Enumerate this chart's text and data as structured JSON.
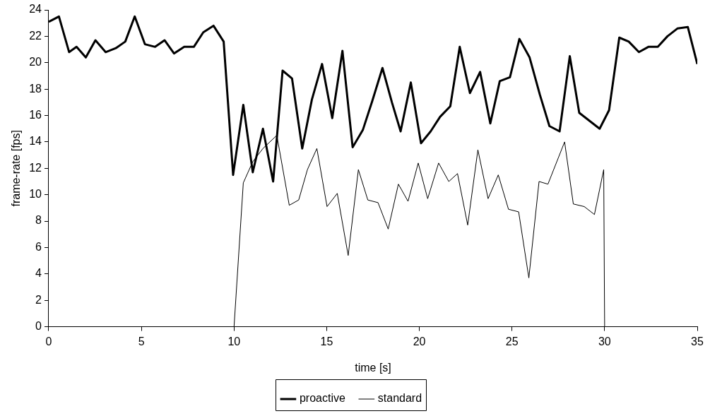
{
  "chart_data": {
    "type": "line",
    "xlabel": "time [s]",
    "ylabel": "frame-rate [fps]",
    "xlim": [
      0,
      35
    ],
    "xticks": [
      0,
      5,
      10,
      15,
      20,
      25,
      30,
      35
    ],
    "ylim": [
      0,
      24
    ],
    "yticks": [
      0,
      2,
      4,
      6,
      8,
      10,
      12,
      14,
      16,
      18,
      20,
      22,
      24
    ],
    "grid": false,
    "legend": "bottom",
    "marker": "none",
    "line_style": "solid",
    "series": [
      {
        "name": "proactive",
        "color": "#000000",
        "x": [
          0,
          0.55,
          1.1,
          1.5,
          2.0,
          2.52,
          3.07,
          3.62,
          4.13,
          4.64,
          5.19,
          5.74,
          6.25,
          6.76,
          7.31,
          7.83,
          8.34,
          8.89,
          9.44,
          9.95,
          10.5,
          11.01,
          11.56,
          12.11,
          12.62,
          13.13,
          13.68,
          14.2,
          14.75,
          15.3,
          15.85,
          16.4,
          16.95,
          17.46,
          18.01,
          18.52,
          18.99,
          19.54,
          20.09,
          20.61,
          21.12,
          21.67,
          22.18,
          22.73,
          23.28,
          23.83,
          24.34,
          24.89,
          25.4,
          25.95,
          26.5,
          27.02,
          27.57,
          28.12,
          28.63,
          29.18,
          29.73,
          30.24,
          30.79,
          31.3,
          31.85,
          32.36,
          32.87,
          33.39,
          33.94,
          34.49,
          35
        ],
        "values": [
          23.1,
          23.5,
          20.8,
          21.2,
          20.4,
          21.7,
          20.8,
          21.1,
          21.6,
          23.5,
          21.4,
          21.2,
          21.7,
          20.7,
          21.2,
          21.2,
          22.3,
          22.8,
          21.6,
          11.5,
          16.8,
          11.7,
          15.0,
          11.0,
          19.4,
          18.8,
          13.5,
          17.2,
          19.9,
          15.8,
          20.9,
          13.6,
          14.9,
          17.1,
          19.6,
          17.0,
          14.8,
          18.5,
          13.9,
          14.8,
          15.9,
          16.7,
          21.2,
          17.7,
          19.3,
          15.4,
          18.6,
          18.9,
          21.8,
          20.4,
          17.6,
          15.2,
          14.8,
          20.5,
          16.2,
          15.6,
          15.0,
          16.4,
          21.9,
          21.6,
          20.8,
          21.2,
          21.2,
          22.0,
          22.6,
          22.7,
          19.9
        ]
      },
      {
        "name": "standard",
        "color": "#000000",
        "x": [
          10,
          10.5,
          11.01,
          11.56,
          12.31,
          12.98,
          13.49,
          13.96,
          14.47,
          15.02,
          15.57,
          16.16,
          16.71,
          17.22,
          17.77,
          18.32,
          18.87,
          19.39,
          19.94,
          20.45,
          21.04,
          21.59,
          22.06,
          22.61,
          23.16,
          23.71,
          24.26,
          24.81,
          25.36,
          25.91,
          26.46,
          26.94,
          27.84,
          28.31,
          28.9,
          29.45,
          29.95,
          30
        ],
        "values": [
          0,
          10.9,
          12.5,
          13.5,
          14.5,
          9.2,
          9.6,
          11.9,
          13.5,
          9.1,
          10.1,
          5.4,
          11.9,
          9.6,
          9.4,
          7.4,
          10.8,
          9.5,
          12.4,
          9.7,
          12.4,
          11.0,
          11.6,
          7.7,
          13.4,
          9.7,
          11.5,
          8.9,
          8.7,
          3.7,
          11.0,
          10.8,
          14.0,
          9.3,
          9.1,
          8.5,
          11.9,
          0
        ]
      }
    ]
  }
}
